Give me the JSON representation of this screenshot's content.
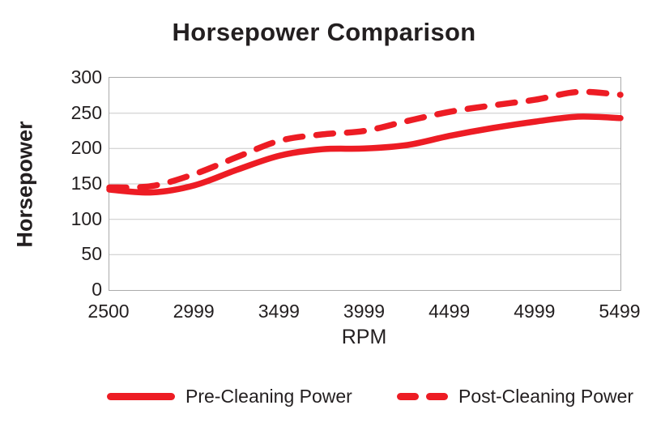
{
  "colors": {
    "accent": "#ED1C24",
    "text": "#231F20",
    "gridline": "#c8c8c8",
    "plot_border": "#ababab",
    "background": "#ffffff"
  },
  "chart_data": {
    "type": "line",
    "title": "Horsepower Comparison",
    "xlabel": "RPM",
    "ylabel": "Horsepower",
    "x_tick_labels": [
      "2500",
      "2999",
      "3499",
      "3999",
      "4499",
      "4999",
      "5499"
    ],
    "y_ticks": [
      0,
      50,
      100,
      150,
      200,
      250,
      300
    ],
    "ylim": [
      0,
      300
    ],
    "xlim": [
      2500,
      5500
    ],
    "grid": "horizontal",
    "legend_position": "bottom",
    "x": [
      2500,
      2750,
      3000,
      3250,
      3500,
      3750,
      4000,
      4250,
      4500,
      4750,
      5000,
      5250,
      5500
    ],
    "series": [
      {
        "name": "Pre-Cleaning Power",
        "style": "solid",
        "color": "#ED1C24",
        "values": [
          142,
          138,
          148,
          170,
          190,
          199,
          200,
          205,
          218,
          229,
          238,
          245,
          243
        ]
      },
      {
        "name": "Post-Cleaning Power",
        "style": "dashed",
        "color": "#ED1C24",
        "values": [
          145,
          147,
          164,
          188,
          211,
          220,
          225,
          239,
          252,
          261,
          269,
          280,
          276
        ]
      }
    ]
  }
}
